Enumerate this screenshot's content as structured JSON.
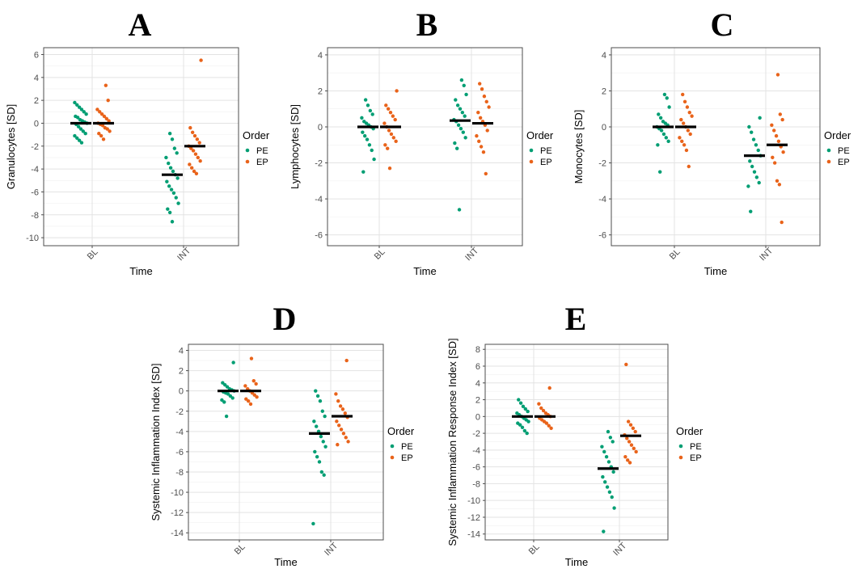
{
  "colors": {
    "PE": "#009E73",
    "EP": "#E9631A",
    "median": "#000000"
  },
  "chart_data": [
    {
      "type": "scatter",
      "letter": "A",
      "ylabel": "Granulocytes [SD]",
      "xlabel": "Time",
      "ylim": [
        -10.7,
        6.6
      ],
      "yticks": [
        6,
        4,
        2,
        0,
        -2,
        -4,
        -6,
        -8,
        -10
      ],
      "categories": [
        "BL",
        "INT"
      ],
      "legend": {
        "title": "Order",
        "items": [
          "PE",
          "EP"
        ]
      },
      "series": [
        {
          "name": "PE",
          "time": "BL",
          "median": 0.0,
          "values": [
            1.8,
            1.6,
            1.4,
            1.2,
            1.0,
            0.8,
            0.6,
            0.5,
            0.3,
            0.2,
            0.1,
            0.0,
            -0.1,
            -0.3,
            -0.5,
            -0.7,
            -0.9,
            -1.1,
            -1.3,
            -1.5,
            -1.7
          ]
        },
        {
          "name": "EP",
          "time": "BL",
          "median": 0.0,
          "values": [
            3.3,
            2.0,
            1.2,
            1.0,
            0.8,
            0.6,
            0.4,
            0.2,
            0.0,
            -0.1,
            -0.2,
            -0.4,
            -0.5,
            -0.7,
            -0.9,
            -1.1,
            -1.4
          ]
        },
        {
          "name": "PE",
          "time": "INT",
          "median": -4.5,
          "values": [
            -0.9,
            -1.4,
            -2.2,
            -2.6,
            -3.0,
            -3.5,
            -3.9,
            -4.2,
            -4.5,
            -4.8,
            -5.1,
            -5.5,
            -5.8,
            -6.1,
            -6.5,
            -7.0,
            -7.5,
            -7.8,
            -8.6
          ]
        },
        {
          "name": "EP",
          "time": "INT",
          "median": -2.0,
          "values": [
            5.5,
            -0.4,
            -0.8,
            -1.1,
            -1.4,
            -1.7,
            -2.0,
            -2.2,
            -2.4,
            -2.7,
            -3.0,
            -3.3,
            -3.6,
            -3.9,
            -4.2,
            -4.4
          ]
        }
      ]
    },
    {
      "type": "scatter",
      "letter": "B",
      "ylabel": "Lymphocytes [SD]",
      "xlabel": "Time",
      "ylim": [
        -6.6,
        4.4
      ],
      "yticks": [
        4,
        2,
        0,
        -2,
        -4,
        -6
      ],
      "categories": [
        "BL",
        "INT"
      ],
      "legend": {
        "title": "Order",
        "items": [
          "PE",
          "EP"
        ]
      },
      "series": [
        {
          "name": "PE",
          "time": "BL",
          "median": 0.0,
          "values": [
            1.5,
            1.2,
            0.9,
            0.7,
            0.5,
            0.3,
            0.2,
            0.1,
            0.0,
            -0.1,
            -0.3,
            -0.5,
            -0.7,
            -1.0,
            -1.3,
            -1.8,
            -2.5
          ]
        },
        {
          "name": "EP",
          "time": "BL",
          "median": 0.0,
          "values": [
            2.0,
            1.2,
            1.0,
            0.8,
            0.6,
            0.4,
            0.2,
            0.0,
            -0.2,
            -0.4,
            -0.6,
            -0.8,
            -1.0,
            -1.2,
            -2.3
          ]
        },
        {
          "name": "PE",
          "time": "INT",
          "median": 0.35,
          "values": [
            2.6,
            2.3,
            1.8,
            1.5,
            1.2,
            1.0,
            0.8,
            0.6,
            0.4,
            0.3,
            0.1,
            -0.1,
            -0.3,
            -0.6,
            -0.9,
            -1.2,
            -4.6
          ]
        },
        {
          "name": "EP",
          "time": "INT",
          "median": 0.2,
          "values": [
            2.4,
            2.1,
            1.7,
            1.4,
            1.1,
            0.8,
            0.5,
            0.3,
            0.1,
            -0.2,
            -0.5,
            -0.8,
            -1.1,
            -1.4,
            -2.6
          ]
        }
      ]
    },
    {
      "type": "scatter",
      "letter": "C",
      "ylabel": "Monocytes [SD]",
      "xlabel": "Time",
      "ylim": [
        -6.6,
        4.4
      ],
      "yticks": [
        4,
        2,
        0,
        -2,
        -4,
        -6
      ],
      "categories": [
        "BL",
        "INT"
      ],
      "legend": {
        "title": "Order",
        "items": [
          "PE",
          "EP"
        ]
      },
      "series": [
        {
          "name": "PE",
          "time": "BL",
          "median": 0.0,
          "values": [
            1.8,
            1.6,
            1.1,
            0.7,
            0.5,
            0.3,
            0.2,
            0.1,
            0.0,
            -0.1,
            -0.2,
            -0.4,
            -0.6,
            -0.8,
            -1.0,
            -2.5
          ]
        },
        {
          "name": "EP",
          "time": "BL",
          "median": 0.0,
          "values": [
            1.8,
            1.4,
            1.1,
            0.8,
            0.6,
            0.4,
            0.2,
            0.0,
            -0.2,
            -0.4,
            -0.6,
            -0.8,
            -1.0,
            -1.3,
            -2.2
          ]
        },
        {
          "name": "PE",
          "time": "INT",
          "median": -1.6,
          "values": [
            0.5,
            0.0,
            -0.3,
            -0.7,
            -1.0,
            -1.3,
            -1.6,
            -1.9,
            -2.2,
            -2.5,
            -2.8,
            -3.1,
            -3.3,
            -4.7
          ]
        },
        {
          "name": "EP",
          "time": "INT",
          "median": -1.0,
          "values": [
            2.9,
            0.7,
            0.4,
            0.1,
            -0.2,
            -0.5,
            -0.8,
            -1.1,
            -1.4,
            -1.7,
            -2.0,
            -3.0,
            -3.2,
            -5.3
          ]
        }
      ]
    },
    {
      "type": "scatter",
      "letter": "D",
      "ylabel": "Systemic Inflammation Index [SD]",
      "xlabel": "Time",
      "ylim": [
        -14.7,
        4.6
      ],
      "yticks": [
        4,
        2,
        0,
        -2,
        -4,
        -6,
        -8,
        -10,
        -12,
        -14
      ],
      "categories": [
        "BL",
        "INT"
      ],
      "legend": {
        "title": "Order",
        "items": [
          "PE",
          "EP"
        ]
      },
      "series": [
        {
          "name": "PE",
          "time": "BL",
          "median": 0.0,
          "values": [
            2.8,
            0.8,
            0.6,
            0.4,
            0.2,
            0.1,
            0.0,
            -0.1,
            -0.2,
            -0.3,
            -0.5,
            -0.7,
            -0.9,
            -1.1,
            -2.5
          ]
        },
        {
          "name": "EP",
          "time": "BL",
          "median": 0.0,
          "values": [
            3.2,
            1.0,
            0.7,
            0.5,
            0.2,
            0.0,
            -0.2,
            -0.4,
            -0.6,
            -0.8,
            -1.0,
            -1.3
          ]
        },
        {
          "name": "PE",
          "time": "INT",
          "median": -4.2,
          "values": [
            0.0,
            -0.5,
            -1.0,
            -2.0,
            -2.5,
            -3.0,
            -3.5,
            -4.0,
            -4.5,
            -5.0,
            -5.5,
            -6.0,
            -6.5,
            -7.0,
            -8.0,
            -8.3,
            -13.1
          ]
        },
        {
          "name": "EP",
          "time": "INT",
          "median": -2.5,
          "values": [
            3.0,
            -0.3,
            -1.0,
            -1.5,
            -1.8,
            -2.2,
            -2.6,
            -3.0,
            -3.4,
            -3.8,
            -4.2,
            -4.6,
            -5.0,
            -5.3
          ]
        }
      ]
    },
    {
      "type": "scatter",
      "letter": "E",
      "ylabel": "Systemic Inflammation Response Index [SD]",
      "xlabel": "Time",
      "ylim": [
        -14.7,
        8.6
      ],
      "yticks": [
        8,
        6,
        4,
        2,
        0,
        -2,
        -4,
        -6,
        -8,
        -10,
        -12,
        -14
      ],
      "categories": [
        "BL",
        "INT"
      ],
      "legend": {
        "title": "Order",
        "items": [
          "PE",
          "EP"
        ]
      },
      "series": [
        {
          "name": "PE",
          "time": "BL",
          "median": 0.0,
          "values": [
            2.0,
            1.6,
            1.2,
            0.9,
            0.6,
            0.4,
            0.2,
            0.0,
            -0.2,
            -0.4,
            -0.6,
            -0.8,
            -1.0,
            -1.3,
            -1.7,
            -2.0
          ]
        },
        {
          "name": "EP",
          "time": "BL",
          "median": 0.0,
          "values": [
            3.4,
            1.5,
            1.0,
            0.7,
            0.4,
            0.2,
            0.0,
            -0.2,
            -0.4,
            -0.6,
            -0.8,
            -1.1,
            -1.4
          ]
        },
        {
          "name": "PE",
          "time": "INT",
          "median": -6.2,
          "values": [
            -1.8,
            -2.5,
            -3.0,
            -3.6,
            -4.2,
            -4.8,
            -5.4,
            -6.0,
            -6.6,
            -7.2,
            -7.8,
            -8.4,
            -9.0,
            -9.6,
            -10.9,
            -13.7
          ]
        },
        {
          "name": "EP",
          "time": "INT",
          "median": -2.3,
          "values": [
            6.2,
            -0.6,
            -1.0,
            -1.4,
            -1.8,
            -2.2,
            -2.6,
            -3.0,
            -3.4,
            -3.8,
            -4.2,
            -4.8,
            -5.2,
            -5.5
          ]
        }
      ]
    }
  ]
}
